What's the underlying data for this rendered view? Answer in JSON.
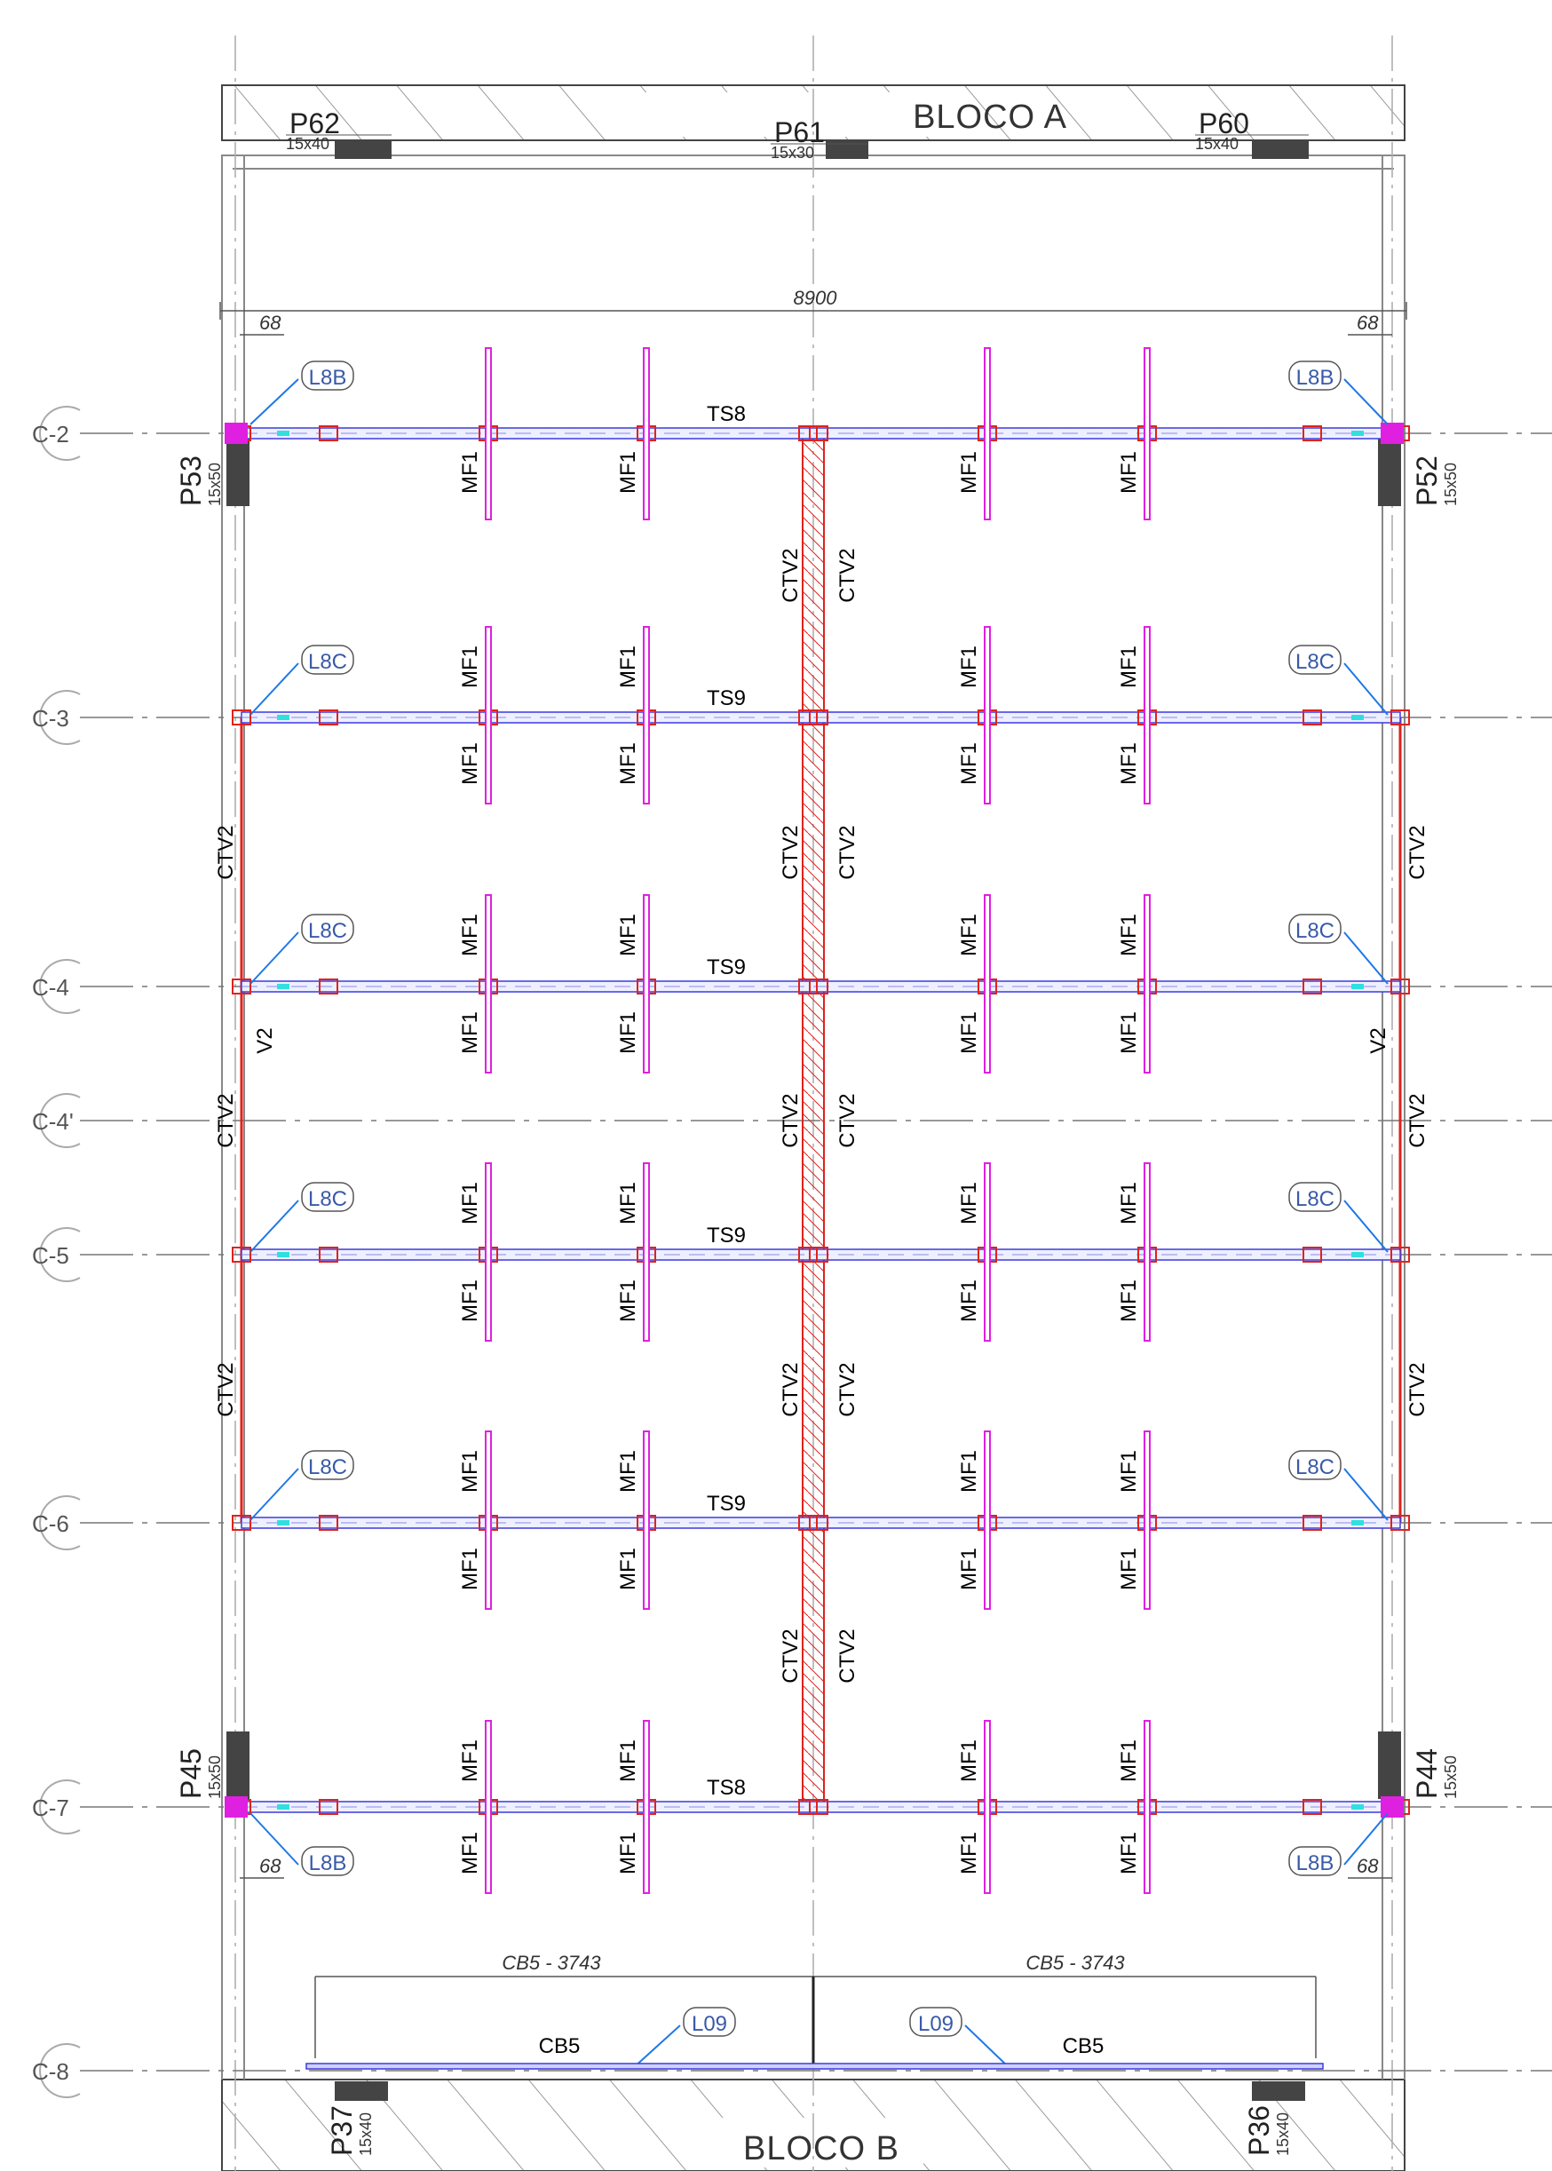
{
  "blocks": {
    "top": "BLOCO A",
    "bottom": "BLOCO B"
  },
  "pillars": {
    "p62": {
      "name": "P62",
      "size": "15x40"
    },
    "p61": {
      "name": "P61",
      "size": "15x30"
    },
    "p60": {
      "name": "P60",
      "size": "15x40"
    },
    "p53": {
      "name": "P53",
      "size": "15x50"
    },
    "p52": {
      "name": "P52",
      "size": "15x50"
    },
    "p45": {
      "name": "P45",
      "size": "15x50"
    },
    "p44": {
      "name": "P44",
      "size": "15x50"
    },
    "p37": {
      "name": "P37",
      "size": "15x40"
    },
    "p36": {
      "name": "P36",
      "size": "15x40"
    }
  },
  "axes": {
    "c2": "C-2",
    "c3": "C-3",
    "c4": "C-4",
    "c4p": "C-4'",
    "c5": "C-5",
    "c6": "C-6",
    "c7": "C-7",
    "c8": "C-8"
  },
  "dimensions": {
    "overall": "8900",
    "offset": "68",
    "cb5_span": "CB5 - 3743"
  },
  "beams": {
    "ts8": "TS8",
    "ts9": "TS9",
    "cb5": "CB5"
  },
  "members": {
    "ctv2": "CTV2",
    "mf1": "MF1",
    "v2": "V2"
  },
  "tags": {
    "l8b": "L8B",
    "l8c": "L8C",
    "l09": "L09"
  },
  "colors": {
    "beam": "#3a3adf",
    "member": "#e0221c",
    "mf": "#e020e0",
    "callout": "#1e78e6",
    "pillar": "#444444",
    "hatch": "#999999",
    "grid": "#777777",
    "light": "#aaaaaa"
  }
}
